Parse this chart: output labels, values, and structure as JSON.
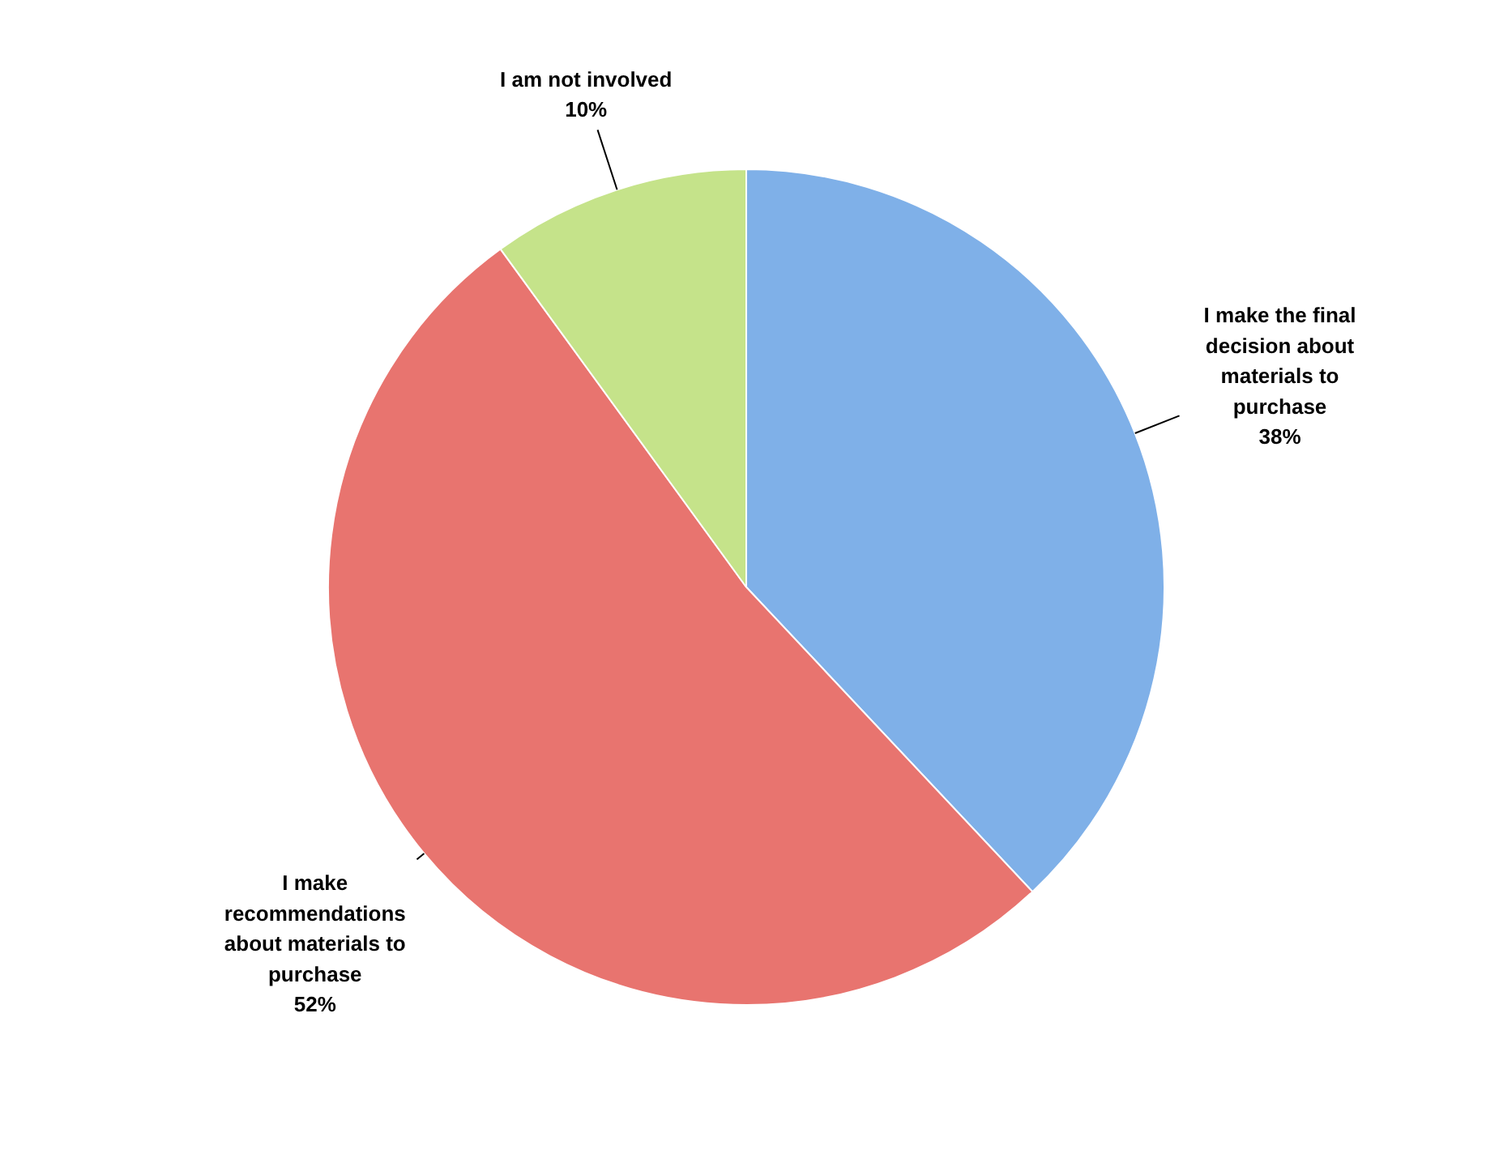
{
  "chart_data": {
    "type": "pie",
    "categories": [
      "I make the final decision about materials to purchase",
      "I make recommendations about materials to purchase",
      "I am not involved"
    ],
    "values": [
      38,
      52,
      10
    ],
    "value_labels": [
      "38%",
      "52%",
      "10%"
    ],
    "colors": [
      "#7fb0e8",
      "#e8746f",
      "#c5e38a"
    ]
  }
}
